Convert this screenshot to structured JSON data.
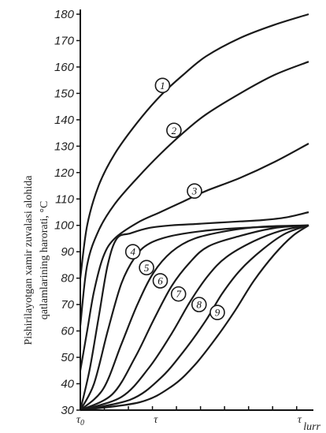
{
  "chart_data": {
    "type": "line",
    "ylabel_line1": "Pishirilayotgan xamir zuvalasi alohida",
    "ylabel_line2": "qatlamlarining harorati, °C",
    "y_ticks": [
      30,
      40,
      50,
      60,
      70,
      80,
      90,
      100,
      110,
      120,
      130,
      140,
      150,
      160,
      170,
      180
    ],
    "ylim": [
      30,
      180
    ],
    "xlim": [
      0,
      1
    ],
    "x_ticks": [
      {
        "x": 0,
        "label": "τ",
        "sub": "0"
      },
      {
        "x": 0.33,
        "label": "τ",
        "sub": ""
      },
      {
        "x": 0.96,
        "label": "τ",
        "sub": ""
      }
    ],
    "x_end_label": "lurr",
    "series": [
      {
        "name": "1",
        "x": [
          0,
          0.03,
          0.08,
          0.15,
          0.25,
          0.35,
          0.45,
          0.55,
          0.7,
          0.85,
          1.0
        ],
        "y": [
          80,
          100,
          115,
          127,
          139,
          149,
          157,
          164,
          171,
          176,
          180
        ],
        "label_x": 0.36,
        "label_y": 153
      },
      {
        "name": "2",
        "x": [
          0,
          0.03,
          0.08,
          0.15,
          0.25,
          0.35,
          0.45,
          0.55,
          0.7,
          0.85,
          1.0
        ],
        "y": [
          62,
          85,
          98,
          108,
          118,
          127,
          135,
          142,
          150,
          157,
          162
        ],
        "label_x": 0.41,
        "label_y": 136
      },
      {
        "name": "3",
        "x": [
          0,
          0.03,
          0.06,
          0.1,
          0.15,
          0.25,
          0.35,
          0.45,
          0.55,
          0.7,
          0.85,
          1.0
        ],
        "y": [
          45,
          60,
          75,
          88,
          95,
          101,
          105,
          109,
          113,
          118,
          124,
          131
        ],
        "label_x": 0.5,
        "label_y": 113
      },
      {
        "name": "",
        "x": [
          0,
          0.04,
          0.08,
          0.12,
          0.16,
          0.22,
          0.3,
          0.4,
          0.5,
          0.6,
          0.7,
          0.8,
          0.9,
          1.0
        ],
        "y": [
          30,
          45,
          65,
          85,
          95,
          97,
          99,
          100,
          100.5,
          101,
          101.5,
          102,
          103,
          105
        ]
      },
      {
        "name": "4",
        "x": [
          0,
          0.06,
          0.12,
          0.18,
          0.24,
          0.3,
          0.4,
          0.55,
          0.7,
          0.85,
          1.0
        ],
        "y": [
          30,
          40,
          60,
          78,
          88,
          93,
          96,
          98,
          99,
          99.5,
          100
        ],
        "label_x": 0.23,
        "label_y": 90
      },
      {
        "name": "5",
        "x": [
          0,
          0.1,
          0.18,
          0.25,
          0.32,
          0.4,
          0.5,
          0.65,
          0.8,
          1.0
        ],
        "y": [
          30,
          38,
          55,
          70,
          82,
          90,
          95,
          98,
          99.5,
          100
        ],
        "label_x": 0.29,
        "label_y": 84
      },
      {
        "name": "6",
        "x": [
          0,
          0.14,
          0.24,
          0.32,
          0.4,
          0.48,
          0.56,
          0.7,
          0.85,
          1.0
        ],
        "y": [
          30,
          36,
          50,
          64,
          77,
          86,
          92,
          96,
          99,
          100
        ],
        "label_x": 0.35,
        "label_y": 79
      },
      {
        "name": "7",
        "x": [
          0,
          0.18,
          0.3,
          0.4,
          0.48,
          0.56,
          0.64,
          0.76,
          0.88,
          1.0
        ],
        "y": [
          30,
          35,
          46,
          59,
          71,
          81,
          88,
          94,
          98,
          100
        ],
        "label_x": 0.43,
        "label_y": 74
      },
      {
        "name": "8",
        "x": [
          0,
          0.22,
          0.35,
          0.45,
          0.55,
          0.62,
          0.7,
          0.8,
          0.9,
          1.0
        ],
        "y": [
          30,
          34,
          42,
          52,
          64,
          74,
          83,
          91,
          97,
          100
        ],
        "label_x": 0.52,
        "label_y": 70
      },
      {
        "name": "9",
        "x": [
          0,
          0.26,
          0.4,
          0.5,
          0.6,
          0.68,
          0.76,
          0.85,
          0.93,
          1.0
        ],
        "y": [
          30,
          33,
          39,
          47,
          58,
          68,
          79,
          89,
          96,
          100
        ],
        "label_x": 0.6,
        "label_y": 67
      }
    ]
  }
}
